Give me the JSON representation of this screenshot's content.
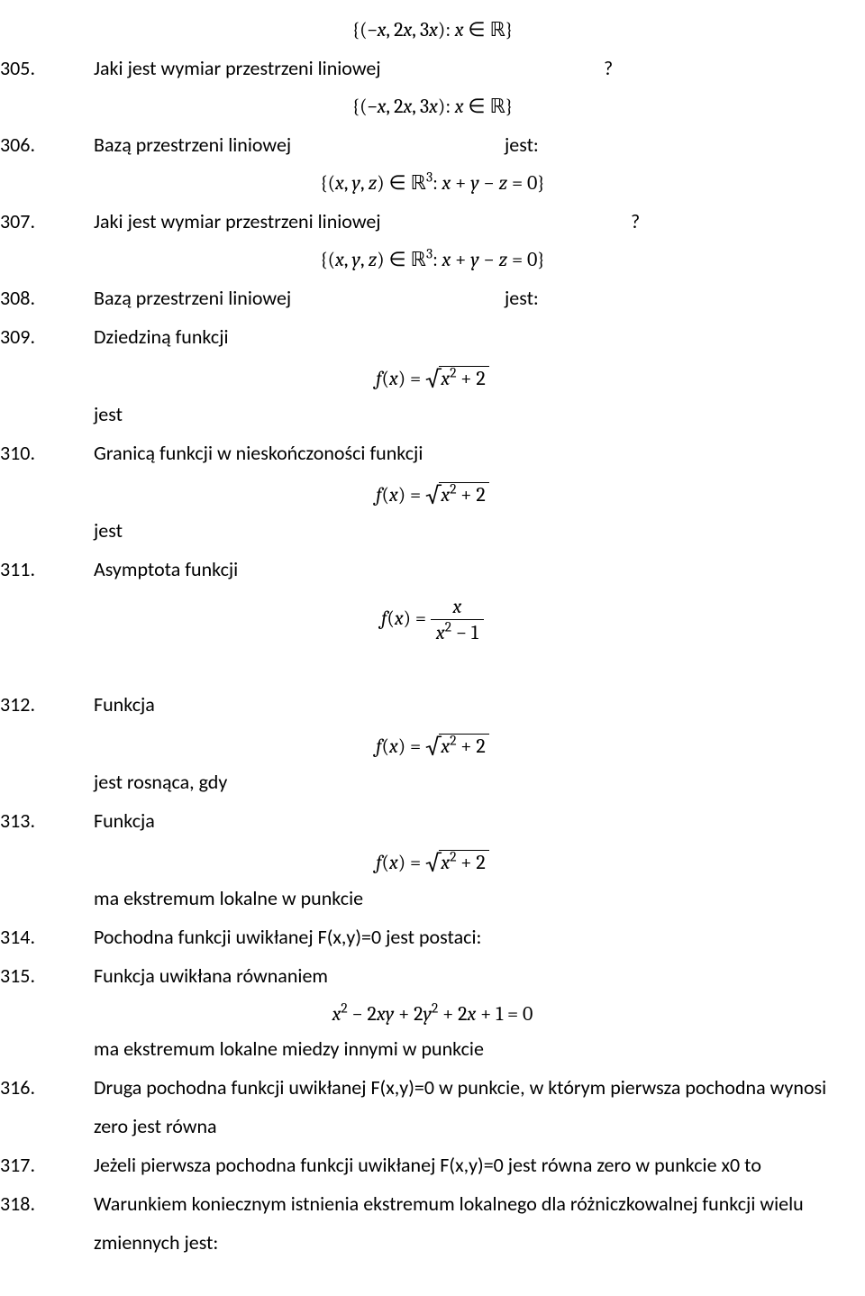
{
  "q305": {
    "num": "305.",
    "text": "Jaki jest wymiar przestrzeni liniowej",
    "suffix": "?",
    "formula_above": "{(−x, 2x, 3x): x ∈ ℝ}"
  },
  "q306": {
    "num": "306.",
    "text": "Bazą przestrzeni liniowej",
    "suffix": "jest:",
    "formula_above": "{(−x, 2x, 3x): x ∈ ℝ}"
  },
  "q307": {
    "num": "307.",
    "text": "Jaki jest wymiar przestrzeni liniowej",
    "suffix": "?",
    "formula_above": "{(x, y, z) ∈ ℝ³: x + y − z = 0}"
  },
  "q308": {
    "num": "308.",
    "text": "Bazą przestrzeni liniowej",
    "suffix": "jest:",
    "formula_above": "{(x, y, z) ∈ ℝ³: x + y − z = 0}"
  },
  "q309": {
    "num": "309.",
    "text": "Dziedziną funkcji",
    "formula_prefix": "f(x) = ",
    "radicand": "x² + 2",
    "jest": "jest"
  },
  "q310": {
    "num": "310.",
    "text": "Granicą funkcji  w nieskończoności funkcji",
    "formula_prefix": "f(x) = ",
    "radicand": "x² + 2",
    "jest": "jest"
  },
  "q311": {
    "num": "311.",
    "text": "Asymptota funkcji",
    "formula_prefix": "f(x) = ",
    "frac_top": "x",
    "frac_bot": "x² − 1"
  },
  "q312": {
    "num": "312.",
    "text": "Funkcja",
    "formula_prefix": "f(x) = ",
    "radicand": "x² + 2",
    "after": "jest rosnąca, gdy"
  },
  "q313": {
    "num": "313.",
    "text": "Funkcja",
    "formula_prefix": "f(x) = ",
    "radicand": "x² + 2",
    "after": "ma ekstremum lokalne w punkcie"
  },
  "q314": {
    "num": "314.",
    "text": "Pochodna funkcji uwikłanej F(x,y)=0 jest postaci:"
  },
  "q315": {
    "num": "315.",
    "text": "Funkcja uwikłana równaniem",
    "formula": "x² − 2xy + 2y² + 2x + 1 = 0",
    "after": "ma ekstremum lokalne miedzy innymi w punkcie"
  },
  "q316": {
    "num": "316.",
    "text_a": "Druga pochodna funkcji uwikłanej F(x,y)=0 w punkcie, w którym pierwsza pochodna wynosi",
    "text_b": "zero jest równa"
  },
  "q317": {
    "num": "317.",
    "text": "Jeżeli pierwsza pochodna funkcji uwikłanej F(x,y)=0 jest równa zero w punkcie x0 to"
  },
  "q318": {
    "num": "318.",
    "text_a": "Warunkiem koniecznym istnienia ekstremum lokalnego dla różniczkowalnej funkcji wielu",
    "text_b": "zmiennych jest:"
  }
}
